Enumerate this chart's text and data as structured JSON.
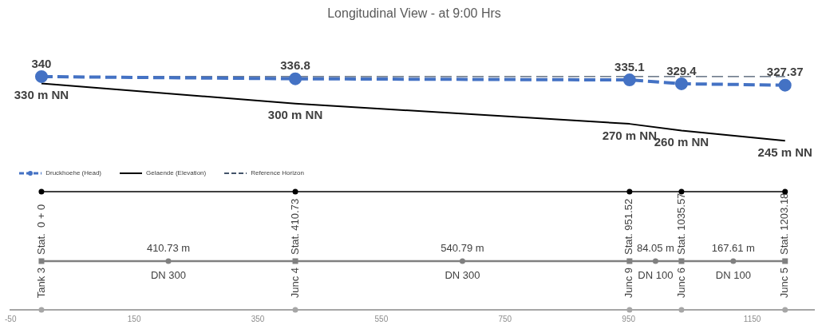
{
  "chart_data": {
    "type": "line",
    "title": "Longitudinal View - at 9:00 Hrs",
    "x": [
      0,
      410.73,
      951.52,
      1035.57,
      1203.18
    ],
    "xlim": [
      -50,
      1250
    ],
    "xticks": [
      -50,
      150,
      350,
      550,
      750,
      950,
      1150
    ],
    "tick_labels": "x",
    "grid": false,
    "legend": "left",
    "series": [
      {
        "name": "Druckhoehe (Head)",
        "color": "#4472c4",
        "values": [
          340,
          336.8,
          335.1,
          329.4,
          327.37
        ],
        "value_labels": [
          "340",
          "336.8",
          "335.1",
          "329.4",
          "327.37"
        ],
        "line_style": "dashed",
        "marker": "circle"
      },
      {
        "name": "Gelaende (Elevation)",
        "color": "#000000",
        "values": [
          330,
          300,
          270,
          260,
          245
        ],
        "value_labels": [
          "330 m NN",
          "300 m NN",
          "270 m NN",
          "260 m NN",
          "245 m NN"
        ],
        "line_style": "solid",
        "marker": "none"
      },
      {
        "name": "Reference Horizon",
        "color": "#44546a",
        "x": [
          0,
          1203.18
        ],
        "values": [
          340,
          340
        ],
        "line_style": "dashed",
        "marker": "none"
      }
    ],
    "annotations": [
      "Stat.  0 + 0",
      "Stat. 410.73",
      "Stat. 951.52",
      "Stat. 1035.57",
      "Stat. 1203.18",
      "Tank 3",
      "Junc 4",
      "Junc 9",
      "Junc 6",
      "Junc 5",
      "410.73 m",
      "540.79 m",
      "84.05 m",
      "167.61 m",
      "DN 300",
      "DN 300",
      "DN 100",
      "DN 100"
    ]
  }
}
